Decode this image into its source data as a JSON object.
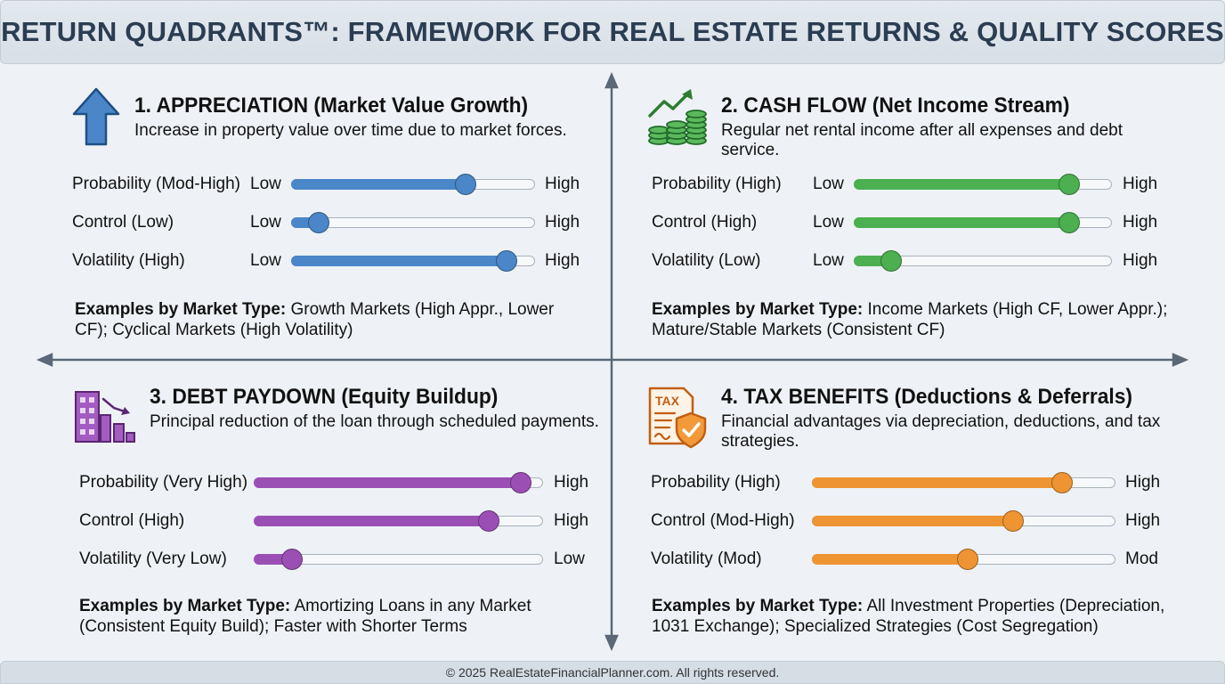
{
  "title": "RETURN QUADRANTS™: FRAMEWORK FOR REAL ESTATE RETURNS & QUALITY SCORES",
  "colors": {
    "appreciation": "#4a86c8",
    "cash_flow": "#4caf50",
    "debt_paydown": "#9b4fb5",
    "tax_benefits": "#ef9433",
    "axis": "#5a6878"
  },
  "quadrants": [
    {
      "id": "appreciation",
      "icon": "arrow-up-icon",
      "title": "1. APPRECIATION (Market Value Growth)",
      "description": "Increase in property value over time due to market forces.",
      "metrics": [
        {
          "label": "Probability (Mod-High)",
          "low": "Low",
          "high": "High",
          "level": 0.71
        },
        {
          "label": "Control (Low)",
          "low": "Low",
          "high": "High",
          "level": 0.11
        },
        {
          "label": "Volatility (High)",
          "low": "Low",
          "high": "High",
          "level": 0.88
        }
      ],
      "examples_label": "Examples by Market Type:",
      "examples_text": " Growth Markets (High Appr., Lower CF); Cyclical Markets (High Volatility)"
    },
    {
      "id": "cash_flow",
      "icon": "money-growth-icon",
      "title": "2. CASH FLOW (Net Income Stream)",
      "description": "Regular net rental income after all expenses and debt service.",
      "metrics": [
        {
          "label": "Probability (High)",
          "low": "Low",
          "high": "High",
          "level": 0.83
        },
        {
          "label": "Control (High)",
          "low": "Low",
          "high": "High",
          "level": 0.83
        },
        {
          "label": "Volatility (Low)",
          "low": "Low",
          "high": "High",
          "level": 0.14
        }
      ],
      "examples_label": "Examples by Market Type:",
      "examples_text": " Income Markets (High CF, Lower Appr.); Mature/Stable Markets (Consistent CF)"
    },
    {
      "id": "debt_paydown",
      "icon": "building-decline-icon",
      "title": "3. DEBT PAYDOWN (Equity Buildup)",
      "description": "Principal reduction of the loan through scheduled payments.",
      "metrics": [
        {
          "label": "Probability (Very High)",
          "low": "",
          "high": "High",
          "level": 0.92
        },
        {
          "label": "Control (High)",
          "low": "",
          "high": "High",
          "level": 0.81
        },
        {
          "label": "Volatility (Very Low)",
          "low": "",
          "high": "Low",
          "level": 0.13
        }
      ],
      "examples_label": "Examples by Market Type:",
      "examples_text": " Amortizing Loans in any Market (Consistent Equity Build); Faster with Shorter Terms"
    },
    {
      "id": "tax_benefits",
      "icon": "tax-shield-icon",
      "title": "4. TAX BENEFITS (Deductions & Deferrals)",
      "description": "Financial advantages via depreciation, deductions, and tax strategies.",
      "metrics": [
        {
          "label": "Probability (High)",
          "low": "",
          "high": "High",
          "level": 0.82
        },
        {
          "label": "Control (Mod-High)",
          "low": "",
          "high": "High",
          "level": 0.66
        },
        {
          "label": "Volatility (Mod)",
          "low": "",
          "high": "Mod",
          "level": 0.51
        }
      ],
      "examples_label": "Examples by Market Type:",
      "examples_text": " All Investment Properties (Depreciation, 1031 Exchange); Specialized Strategies (Cost Segregation)"
    }
  ],
  "footer": "© 2025 RealEstateFinancialPlanner.com. All rights reserved."
}
